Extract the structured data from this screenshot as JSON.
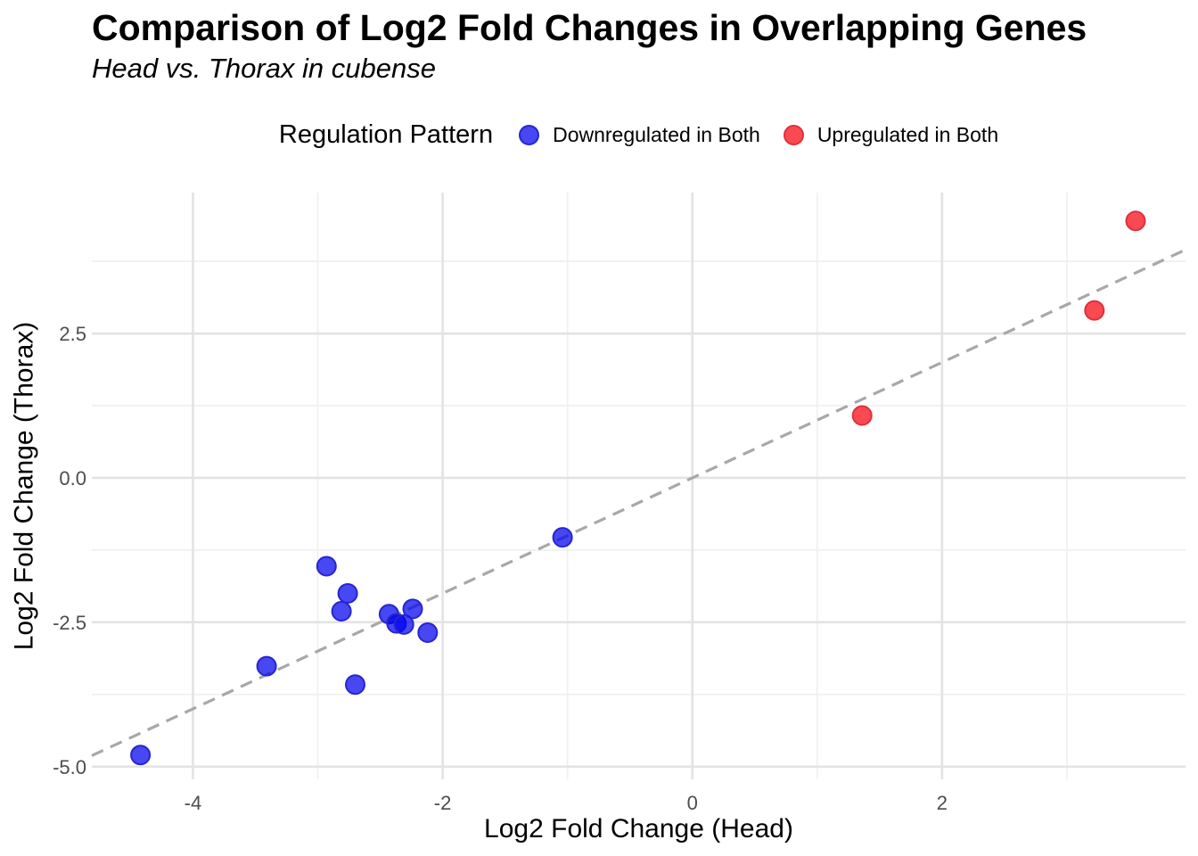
{
  "title": "Comparison of Log2 Fold Changes in Overlapping Genes",
  "subtitle": "Head vs. Thorax in cubense",
  "legend": {
    "title": "Regulation Pattern",
    "items": [
      {
        "label": "Downregulated in Both"
      },
      {
        "label": "Upregulated in Both"
      }
    ]
  },
  "chart_data": {
    "type": "scatter",
    "title": "Comparison of Log2 Fold Changes in Overlapping Genes",
    "subtitle": "Head vs. Thorax in cubense",
    "xlabel": "Log2 Fold Change (Head)",
    "ylabel": "Log2 Fold Change (Thorax)",
    "xlim": [
      -4.81,
      3.95
    ],
    "ylim": [
      -5.22,
      4.94
    ],
    "x_major_ticks": [
      -4,
      -2,
      0,
      2
    ],
    "x_tick_labels": [
      "-4",
      "-2",
      "0",
      "2"
    ],
    "x_minor_ticks": [
      -3,
      -1,
      1,
      3
    ],
    "y_major_ticks": [
      2.5,
      0,
      -2.5,
      -5
    ],
    "y_tick_labels": [
      "2.5",
      "0.0",
      "-2.5",
      "-5.0"
    ],
    "y_minor_ticks": [
      3.75,
      1.25,
      -1.25,
      -3.75
    ],
    "grid": true,
    "legend_position": "top",
    "reference_line": {
      "type": "identity y=x",
      "style": "dashed",
      "color": "#a8a8a8"
    },
    "style": {
      "background": "#ffffff",
      "major_grid_color": "#e3e3e3",
      "minor_grid_color": "#efefef",
      "tick_label_color": "#4d4d4d",
      "blue": "#0000ee",
      "red": "#f81c26"
    },
    "series": [
      {
        "id": "downregulated",
        "name": "Downregulated in Both",
        "fill": "rgba(0,0,238,0.72)",
        "stroke": "#2626cf",
        "points": [
          [
            -4.42,
            -4.8
          ],
          [
            -3.41,
            -3.26
          ],
          [
            -2.93,
            -1.53
          ],
          [
            -2.81,
            -2.31
          ],
          [
            -2.76,
            -2.0
          ],
          [
            -2.7,
            -3.58
          ],
          [
            -2.43,
            -2.36
          ],
          [
            -2.37,
            -2.52
          ],
          [
            -2.31,
            -2.54
          ],
          [
            -2.24,
            -2.27
          ],
          [
            -2.12,
            -2.68
          ],
          [
            -1.04,
            -1.03
          ]
        ]
      },
      {
        "id": "upregulated",
        "name": "Upregulated in Both",
        "fill": "rgba(248,28,38,0.80)",
        "stroke": "#df313c",
        "points": [
          [
            1.36,
            1.08
          ],
          [
            3.22,
            2.9
          ],
          [
            3.55,
            4.45
          ]
        ]
      }
    ]
  }
}
